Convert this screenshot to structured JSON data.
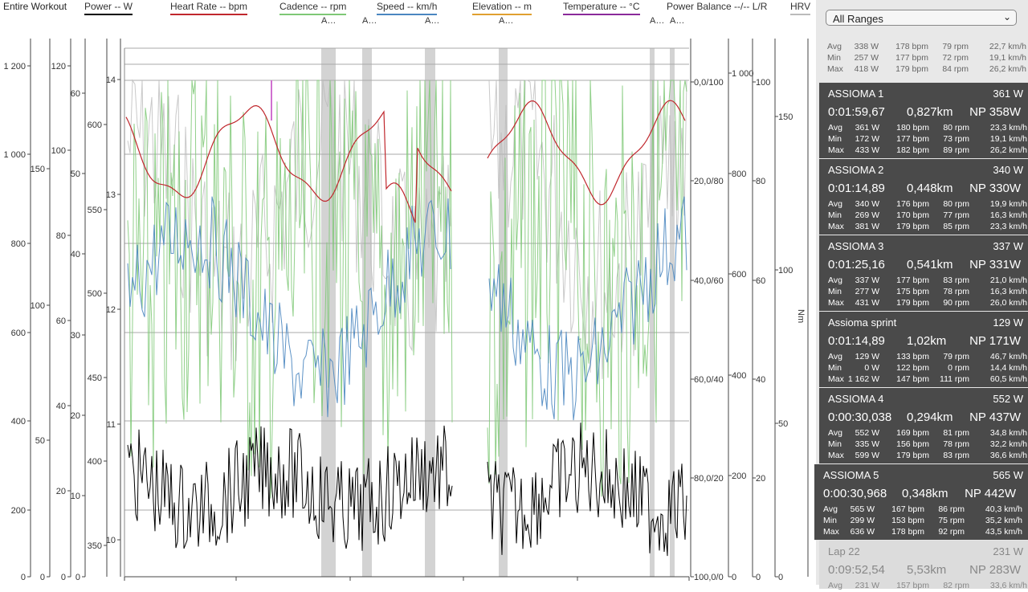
{
  "legend": {
    "title": "Entire Workout",
    "items": [
      {
        "label": "Power  -- W",
        "color": "#000000"
      },
      {
        "label": "Heart Rate  -- bpm",
        "color": "#c0272d"
      },
      {
        "label": "Cadence  -- rpm",
        "color": "#7ec876"
      },
      {
        "label": "Speed  -- km/h",
        "color": "#4a86c0"
      },
      {
        "label": "Elevation  -- m",
        "color": "#e0a030"
      },
      {
        "label": "Temperature  -- °C",
        "color": "#8a2a9a"
      },
      {
        "label": "Power Balance  --/-- L/R",
        "color": ""
      },
      {
        "label": "HRV",
        "color": "#bbbbbb"
      }
    ]
  },
  "range_tags": [
    "A…",
    "A…",
    "A…",
    "A…",
    "A…",
    "A…"
  ],
  "axes": {
    "power_left_labels": [
      "1 200",
      "1 000",
      "800",
      "600",
      "400",
      "200",
      "0"
    ],
    "hr_labels": [
      "150",
      "100",
      "50",
      "0"
    ],
    "cadence_labels": [
      "120",
      "100",
      "80",
      "60",
      "40",
      "20",
      "0"
    ],
    "speed_labels": [
      "60",
      "50",
      "40",
      "30",
      "20",
      "10",
      "0"
    ],
    "elev_labels": [
      "600",
      "550",
      "500",
      "450",
      "400",
      "350"
    ],
    "temp_labels": [
      "14",
      "13",
      "12",
      "11",
      "10"
    ],
    "balance_labels": [
      "0,0/100",
      "20,0/80",
      "40,0/60",
      "60,0/40",
      "80,0/20",
      "100,0/0"
    ],
    "right_power_labels": [
      "1 000",
      "800",
      "600",
      "400",
      "200",
      "0"
    ],
    "right_hr_labels": [
      "100",
      "80",
      "60",
      "40",
      "20",
      "0"
    ],
    "torque_labels": [
      "150",
      "100",
      "50",
      "0"
    ],
    "torque_unit": "Nm"
  },
  "sidebar": {
    "range_select": "All Ranges",
    "summary": {
      "rows": [
        {
          "label": "Avg",
          "w": "338 W",
          "bpm": "178 bpm",
          "rpm": "79 rpm",
          "kmh": "22,7 km/h"
        },
        {
          "label": "Min",
          "w": "257 W",
          "bpm": "177 bpm",
          "rpm": "72 rpm",
          "kmh": "19,1 km/h"
        },
        {
          "label": "Max",
          "w": "418 W",
          "bpm": "179 bpm",
          "rpm": "84 rpm",
          "kmh": "26,2 km/h"
        }
      ]
    },
    "cards": [
      {
        "name": "ASSIOMA 1",
        "avg_w": "361 W",
        "time": "0:01:59,67",
        "dist": "0,827km",
        "np": "NP 358W",
        "rows": [
          {
            "label": "Avg",
            "w": "361 W",
            "bpm": "180 bpm",
            "rpm": "80 rpm",
            "kmh": "23,3 km/h"
          },
          {
            "label": "Min",
            "w": "172 W",
            "bpm": "177 bpm",
            "rpm": "73 rpm",
            "kmh": "19,1 km/h"
          },
          {
            "label": "Max",
            "w": "433 W",
            "bpm": "182 bpm",
            "rpm": "89 rpm",
            "kmh": "26,2 km/h"
          }
        ]
      },
      {
        "name": "ASSIOMA 2",
        "avg_w": "340 W",
        "time": "0:01:14,89",
        "dist": "0,448km",
        "np": "NP 330W",
        "rows": [
          {
            "label": "Avg",
            "w": "340 W",
            "bpm": "176 bpm",
            "rpm": "80 rpm",
            "kmh": "19,9 km/h"
          },
          {
            "label": "Min",
            "w": "269 W",
            "bpm": "170 bpm",
            "rpm": "77 rpm",
            "kmh": "16,3 km/h"
          },
          {
            "label": "Max",
            "w": "381 W",
            "bpm": "179 bpm",
            "rpm": "85 rpm",
            "kmh": "23,3 km/h"
          }
        ]
      },
      {
        "name": "ASSIOMA 3",
        "avg_w": "337 W",
        "time": "0:01:25,16",
        "dist": "0,541km",
        "np": "NP 331W",
        "rows": [
          {
            "label": "Avg",
            "w": "337 W",
            "bpm": "177 bpm",
            "rpm": "83 rpm",
            "kmh": "21,0 km/h"
          },
          {
            "label": "Min",
            "w": "277 W",
            "bpm": "175 bpm",
            "rpm": "78 rpm",
            "kmh": "16,3 km/h"
          },
          {
            "label": "Max",
            "w": "431 W",
            "bpm": "179 bpm",
            "rpm": "90 rpm",
            "kmh": "26,0 km/h"
          }
        ]
      },
      {
        "name": "Assioma sprint",
        "avg_w": "129 W",
        "time": "0:01:14,89",
        "dist": "1,02km",
        "np": "NP 171W",
        "rows": [
          {
            "label": "Avg",
            "w": "129 W",
            "bpm": "133 bpm",
            "rpm": "79 rpm",
            "kmh": "46,7 km/h"
          },
          {
            "label": "Min",
            "w": "0 W",
            "bpm": "122 bpm",
            "rpm": "0 rpm",
            "kmh": "14,4 km/h"
          },
          {
            "label": "Max",
            "w": "1 162 W",
            "bpm": "147 bpm",
            "rpm": "111 rpm",
            "kmh": "60,5 km/h"
          }
        ]
      },
      {
        "name": "ASSIOMA 4",
        "avg_w": "552 W",
        "time": "0:00:30,038",
        "dist": "0,294km",
        "np": "NP 437W",
        "rows": [
          {
            "label": "Avg",
            "w": "552 W",
            "bpm": "169 bpm",
            "rpm": "81 rpm",
            "kmh": "34,8 km/h"
          },
          {
            "label": "Min",
            "w": "335 W",
            "bpm": "156 bpm",
            "rpm": "78 rpm",
            "kmh": "32,2 km/h"
          },
          {
            "label": "Max",
            "w": "599 W",
            "bpm": "179 bpm",
            "rpm": "83 rpm",
            "kmh": "36,6 km/h"
          }
        ]
      },
      {
        "name": "ASSIOMA 5",
        "avg_w": "565 W",
        "time": "0:00:30,968",
        "dist": "0,348km",
        "np": "NP 442W",
        "rows": [
          {
            "label": "Avg",
            "w": "565 W",
            "bpm": "167 bpm",
            "rpm": "86 rpm",
            "kmh": "40,3 km/h"
          },
          {
            "label": "Min",
            "w": "299 W",
            "bpm": "153 bpm",
            "rpm": "75 rpm",
            "kmh": "35,2 km/h"
          },
          {
            "label": "Max",
            "w": "636 W",
            "bpm": "178 bpm",
            "rpm": "92 rpm",
            "kmh": "43,5 km/h"
          }
        ]
      },
      {
        "name": "Lap 22",
        "avg_w": "231 W",
        "time": "0:09:52,54",
        "dist": "5,53km",
        "np": "NP 283W",
        "rows": [
          {
            "label": "Avg",
            "w": "231 W",
            "bpm": "157 bpm",
            "rpm": "82 rpm",
            "kmh": "33,6 km/h"
          }
        ]
      }
    ]
  },
  "colors": {
    "power": "#000000",
    "heart_rate": "#c0272d",
    "cadence": "#7ec876",
    "speed": "#4a86c0",
    "elevation": "#e0a030",
    "temperature": "#8a2a9a",
    "hrv": "#bbbbbb",
    "card_dark": "#4a4a4a",
    "range_highlight": "#d0d0d0"
  }
}
